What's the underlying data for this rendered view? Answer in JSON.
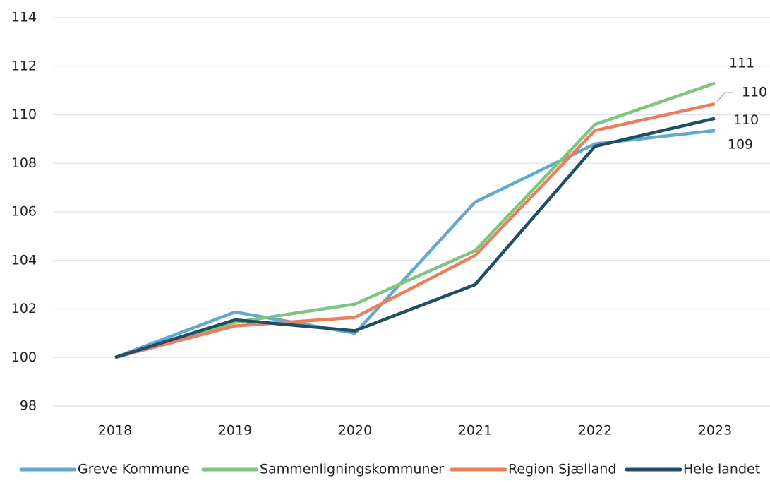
{
  "chart_data": {
    "type": "line",
    "categories": [
      "2018",
      "2019",
      "2020",
      "2021",
      "2022",
      "2023"
    ],
    "series": [
      {
        "name": "Greve Kommune",
        "color": "#62a8cf",
        "values": [
          100,
          101.87,
          101.0,
          106.4,
          108.8,
          109.35
        ],
        "value_labels": [
          null,
          null,
          null,
          null,
          null,
          "109"
        ]
      },
      {
        "name": "Sammenligningskommuner",
        "color": "#80c47f",
        "values": [
          100,
          101.45,
          102.2,
          104.4,
          109.6,
          111.3
        ],
        "value_labels": [
          null,
          null,
          null,
          null,
          null,
          "111"
        ]
      },
      {
        "name": "Region Sjælland",
        "color": "#ea7f5c",
        "values": [
          100,
          101.3,
          101.65,
          104.2,
          109.35,
          110.45
        ],
        "value_labels": [
          null,
          null,
          null,
          null,
          null,
          "110"
        ]
      },
      {
        "name": "Hele landet",
        "color": "#1f4e66",
        "values": [
          100,
          101.55,
          101.1,
          103.0,
          108.7,
          109.85
        ],
        "value_labels": [
          null,
          null,
          null,
          null,
          null,
          "110"
        ]
      }
    ],
    "ylim": [
      98,
      114
    ],
    "yticks": [
      98,
      100,
      102,
      104,
      106,
      108,
      110,
      112,
      114
    ],
    "grid": true
  }
}
